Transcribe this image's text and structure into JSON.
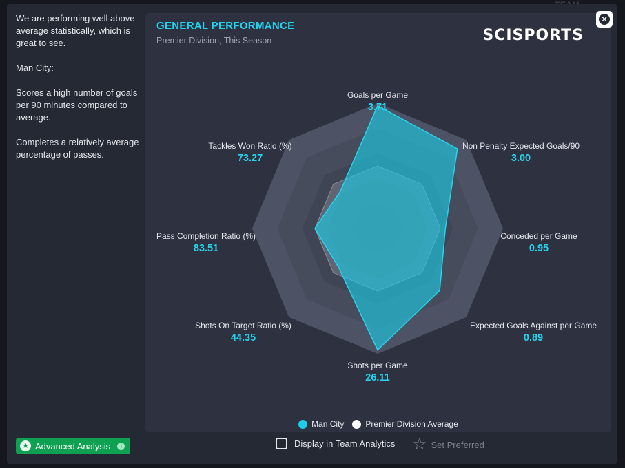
{
  "background_peek": "TEAM ATTACKING",
  "summary": {
    "paragraphs": [
      "We are performing well above average statistically, which is great to see.",
      "Man City:",
      "Scores a high number of goals per 90 minutes compared to average.",
      "Completes a relatively average percentage of passes."
    ]
  },
  "panel": {
    "title": "GENERAL PERFORMANCE",
    "subtitle": "Premier Division, This Season",
    "brand": "SCISPORTS"
  },
  "close_icon": "close-circle-icon",
  "chart_data": {
    "type": "radar",
    "title": "GENERAL PERFORMANCE",
    "subtitle": "Premier Division, This Season",
    "axes": [
      {
        "label": "Goals per Game",
        "value": "3.71"
      },
      {
        "label": "Non Penalty Expected Goals/90",
        "value": "3.00"
      },
      {
        "label": "Conceded per Game",
        "value": "0.95"
      },
      {
        "label": "Expected Goals Against per Game",
        "value": "0.89"
      },
      {
        "label": "Shots per Game",
        "value": "26.11"
      },
      {
        "label": "Shots On Target Ratio (%)",
        "value": "44.35"
      },
      {
        "label": "Pass Completion Ratio (%)",
        "value": "83.51"
      },
      {
        "label": "Tackles Won Ratio (%)",
        "value": "73.27"
      }
    ],
    "series": [
      {
        "name": "Man City",
        "color": "#1ccde6",
        "relative": [
          0.98,
          0.9,
          0.54,
          0.7,
          0.97,
          0.44,
          0.5,
          0.42
        ]
      },
      {
        "name": "Premier Division Average",
        "color": "#ffffff",
        "relative": [
          0.5,
          0.5,
          0.5,
          0.5,
          0.5,
          0.5,
          0.5,
          0.5
        ]
      }
    ],
    "rings": 5,
    "legend_position": "bottom"
  },
  "legend": {
    "items": [
      {
        "label": "Man City",
        "color": "#1ccde6"
      },
      {
        "label": "Premier Division Average",
        "color": "#ffffff"
      }
    ]
  },
  "footer": {
    "advanced_label": "Advanced Analysis",
    "display_label": "Display in Team Analytics",
    "preferred_label": "Set Preferred"
  }
}
